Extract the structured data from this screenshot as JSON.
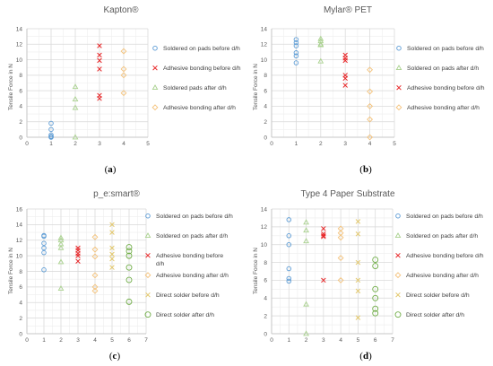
{
  "colors": {
    "blue": "#5B9BD5",
    "red": "#E8292B",
    "olive": "#A9D18E",
    "yellow": "#F4C27A",
    "gold": "#E3C86C",
    "green": "#70AD47",
    "grid": "#d9d9d9",
    "axis": "#bfbfbf",
    "text": "#595959"
  },
  "chart_data": [
    {
      "type": "scatter",
      "caption": "a",
      "title": "Kapton®",
      "ylabel": "Tensile Force in N",
      "xlim": [
        0,
        5
      ],
      "ylim": [
        0,
        14
      ],
      "xticks": [
        0,
        1,
        2,
        3,
        4,
        5
      ],
      "yticks": [
        0,
        2,
        4,
        6,
        8,
        10,
        12,
        14
      ],
      "grid": true,
      "legend_position": "right",
      "series": [
        {
          "name": "Soldered on pads before d/h",
          "color": "blue",
          "marker": "circle",
          "points": [
            [
              1,
              1.8
            ],
            [
              1,
              1.0
            ],
            [
              1,
              0.3
            ],
            [
              1,
              0.1
            ],
            [
              1,
              0.05
            ],
            [
              1,
              0.0
            ]
          ]
        },
        {
          "name": "Adhesive bonding before d/h",
          "color": "red",
          "marker": "x",
          "points": [
            [
              3,
              11.8
            ],
            [
              3,
              10.6
            ],
            [
              3,
              9.9
            ],
            [
              3,
              8.8
            ],
            [
              3,
              5.4
            ],
            [
              3,
              5.0
            ]
          ]
        },
        {
          "name": "Soldered pads after d/h",
          "color": "olive",
          "marker": "triangle",
          "points": [
            [
              2,
              6.5
            ],
            [
              2,
              4.9
            ],
            [
              2,
              3.8
            ],
            [
              2,
              0.0
            ]
          ]
        },
        {
          "name": "Adhesive bonding after d/h",
          "color": "yellow",
          "marker": "diamond",
          "points": [
            [
              4,
              11.1
            ],
            [
              4,
              8.8
            ],
            [
              4,
              8.0
            ],
            [
              4,
              5.7
            ]
          ]
        }
      ]
    },
    {
      "type": "scatter",
      "caption": "b",
      "title": "Mylar® PET",
      "ylabel": "Tensile Force in N",
      "xlim": [
        0,
        5
      ],
      "ylim": [
        0,
        14
      ],
      "xticks": [
        0,
        1,
        2,
        3,
        4,
        5
      ],
      "yticks": [
        0,
        2,
        4,
        6,
        8,
        10,
        12,
        14
      ],
      "grid": true,
      "legend_position": "right",
      "series": [
        {
          "name": "Soldered on pads before d/h",
          "color": "blue",
          "marker": "circle",
          "points": [
            [
              1,
              12.6
            ],
            [
              1,
              12.2
            ],
            [
              1,
              11.8
            ],
            [
              1,
              10.9
            ],
            [
              1,
              10.5
            ],
            [
              1,
              9.6
            ]
          ]
        },
        {
          "name": "Soldered on pads after d/h",
          "color": "olive",
          "marker": "triangle",
          "points": [
            [
              2,
              12.7
            ],
            [
              2,
              12.4
            ],
            [
              2,
              12.0
            ],
            [
              2,
              11.9
            ],
            [
              2,
              9.8
            ]
          ]
        },
        {
          "name": "Adhesive bonding before d/h",
          "color": "red",
          "marker": "x",
          "points": [
            [
              3,
              10.6
            ],
            [
              3,
              10.2
            ],
            [
              3,
              9.9
            ],
            [
              3,
              8.0
            ],
            [
              3,
              7.6
            ],
            [
              3,
              6.7
            ]
          ]
        },
        {
          "name": "Adhesive bonding after d/h",
          "color": "yellow",
          "marker": "diamond",
          "points": [
            [
              4,
              8.7
            ],
            [
              4,
              5.9
            ],
            [
              4,
              4.0
            ],
            [
              4,
              2.3
            ],
            [
              4,
              0.0
            ]
          ]
        }
      ]
    },
    {
      "type": "scatter",
      "caption": "c",
      "title": "p_e:smart®",
      "ylabel": "Tensile Force in N",
      "xlim": [
        0,
        7
      ],
      "ylim": [
        0,
        16
      ],
      "xticks": [
        0,
        1,
        2,
        3,
        4,
        5,
        6,
        7
      ],
      "yticks": [
        0,
        2,
        4,
        6,
        8,
        10,
        12,
        14,
        16
      ],
      "grid": true,
      "legend_position": "right",
      "series": [
        {
          "name": "Soldered on pads before d/h",
          "color": "blue",
          "marker": "circle",
          "points": [
            [
              1,
              12.6
            ],
            [
              1,
              12.5
            ],
            [
              1,
              11.6
            ],
            [
              1,
              11.0
            ],
            [
              1,
              10.4
            ],
            [
              1,
              8.2
            ]
          ]
        },
        {
          "name": "Soldered on pads after d/h",
          "color": "olive",
          "marker": "triangle",
          "points": [
            [
              2,
              12.3
            ],
            [
              2,
              12.0
            ],
            [
              2,
              11.5
            ],
            [
              2,
              11.0
            ],
            [
              2,
              9.2
            ],
            [
              2,
              5.8
            ]
          ]
        },
        {
          "name": "Adhesive bonding before d/h",
          "color": "red",
          "marker": "x",
          "points": [
            [
              3,
              11.0
            ],
            [
              3,
              10.7
            ],
            [
              3,
              10.3
            ],
            [
              3,
              10.0
            ],
            [
              3,
              9.3
            ]
          ]
        },
        {
          "name": "Adhesive bonding after d/h",
          "color": "yellow",
          "marker": "diamond",
          "points": [
            [
              4,
              12.4
            ],
            [
              4,
              10.8
            ],
            [
              4,
              9.9
            ],
            [
              4,
              7.5
            ],
            [
              4,
              6.0
            ],
            [
              4,
              5.5
            ]
          ]
        },
        {
          "name": "Direct solder before d/h",
          "color": "gold",
          "marker": "x",
          "points": [
            [
              5,
              14.0
            ],
            [
              5,
              13.0
            ],
            [
              5,
              11.0
            ],
            [
              5,
              10.2
            ],
            [
              5,
              9.6
            ],
            [
              5,
              8.5
            ]
          ]
        },
        {
          "name": "Direct solder after d/h",
          "color": "green",
          "marker": "circle-open",
          "points": [
            [
              6,
              11.1
            ],
            [
              6,
              10.6
            ],
            [
              6,
              10.0
            ],
            [
              6,
              8.5
            ],
            [
              6,
              6.9
            ],
            [
              6,
              4.1
            ]
          ]
        }
      ]
    },
    {
      "type": "scatter",
      "caption": "d",
      "title": "Type 4 Paper Substrate",
      "ylabel": "Tensile Force in N",
      "xlim": [
        0,
        7
      ],
      "ylim": [
        0,
        14
      ],
      "xticks": [
        0,
        1,
        2,
        3,
        4,
        5,
        6,
        7
      ],
      "yticks": [
        0,
        2,
        4,
        6,
        8,
        10,
        12,
        14
      ],
      "grid": true,
      "legend_position": "right",
      "series": [
        {
          "name": "Soldered on pads before d/h",
          "color": "blue",
          "marker": "circle",
          "points": [
            [
              1,
              12.8
            ],
            [
              1,
              11.0
            ],
            [
              1,
              10.0
            ],
            [
              1,
              7.3
            ],
            [
              1,
              6.2
            ],
            [
              1,
              5.9
            ]
          ]
        },
        {
          "name": "Soldered on pads after d/h",
          "color": "olive",
          "marker": "triangle",
          "points": [
            [
              2,
              12.5
            ],
            [
              2,
              11.6
            ],
            [
              2,
              10.4
            ],
            [
              2,
              3.3
            ],
            [
              2,
              0.0
            ]
          ]
        },
        {
          "name": "Adhesive bonding before d/h",
          "color": "red",
          "marker": "x",
          "points": [
            [
              3,
              11.8
            ],
            [
              3,
              11.2
            ],
            [
              3,
              11.0
            ],
            [
              3,
              10.9
            ],
            [
              3,
              6.0
            ]
          ]
        },
        {
          "name": "Adhesive bonding after d/h",
          "color": "yellow",
          "marker": "diamond",
          "points": [
            [
              4,
              11.8
            ],
            [
              4,
              11.3
            ],
            [
              4,
              10.8
            ],
            [
              4,
              8.5
            ],
            [
              4,
              6.0
            ]
          ]
        },
        {
          "name": "Direct solder before d/h",
          "color": "gold",
          "marker": "x",
          "points": [
            [
              5,
              12.6
            ],
            [
              5,
              11.2
            ],
            [
              5,
              8.0
            ],
            [
              5,
              6.0
            ],
            [
              5,
              4.8
            ],
            [
              5,
              1.8
            ]
          ]
        },
        {
          "name": "Direct solder after d/h",
          "color": "green",
          "marker": "circle-open",
          "points": [
            [
              6,
              8.3
            ],
            [
              6,
              7.6
            ],
            [
              6,
              5.0
            ],
            [
              6,
              4.0
            ],
            [
              6,
              2.8
            ],
            [
              6,
              2.3
            ]
          ]
        }
      ]
    }
  ]
}
